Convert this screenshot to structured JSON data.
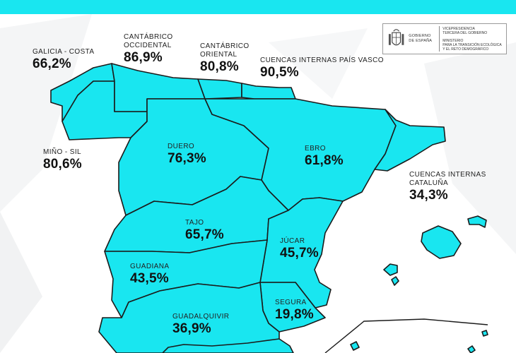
{
  "header": {
    "accent_color": "#19e6f0"
  },
  "logo": {
    "government_line1": "GOBIERNO",
    "government_line2": "DE ESPAÑA",
    "vice_line1": "VICEPRESIDENCIA",
    "vice_line2": "TERCERA DEL GOBIERNO",
    "ministry_line1": "MINISTERIO",
    "ministry_line2": "PARA LA TRANSICIÓN ECOLÓGICA",
    "ministry_line3": "Y EL RETO DEMOGRÁFICO"
  },
  "map": {
    "fill_color": "#19e6f0",
    "border_color": "#1b1b1b",
    "basins": [
      {
        "name": "GALICIA - COSTA",
        "value": "66,2%"
      },
      {
        "name": "CANTÁBRICO OCCIDENTAL",
        "name_line1": "CANTÁBRICO",
        "name_line2": "OCCIDENTAL",
        "value": "86,9%"
      },
      {
        "name": "CANTÁBRICO ORIENTAL",
        "name_line1": "CANTÁBRICO",
        "name_line2": "ORIENTAL",
        "value": "80,8%"
      },
      {
        "name": "CUENCAS INTERNAS PAÍS VASCO",
        "value": "90,5%"
      },
      {
        "name": "MIÑO - SIL",
        "value": "80,6%"
      },
      {
        "name": "DUERO",
        "value": "76,3%"
      },
      {
        "name": "EBRO",
        "value": "61,8%"
      },
      {
        "name": "CUENCAS INTERNAS CATALUÑA",
        "name_line1": "CUENCAS INTERNAS",
        "name_line2": "CATALUÑA",
        "value": "34,3%"
      },
      {
        "name": "TAJO",
        "value": "65,7%"
      },
      {
        "name": "JÚCAR",
        "value": "45,7%"
      },
      {
        "name": "GUADIANA",
        "value": "43,5%"
      },
      {
        "name": "SEGURA",
        "value": "19,8%"
      },
      {
        "name": "GUADALQUIVIR",
        "value": "36,9%"
      }
    ]
  }
}
